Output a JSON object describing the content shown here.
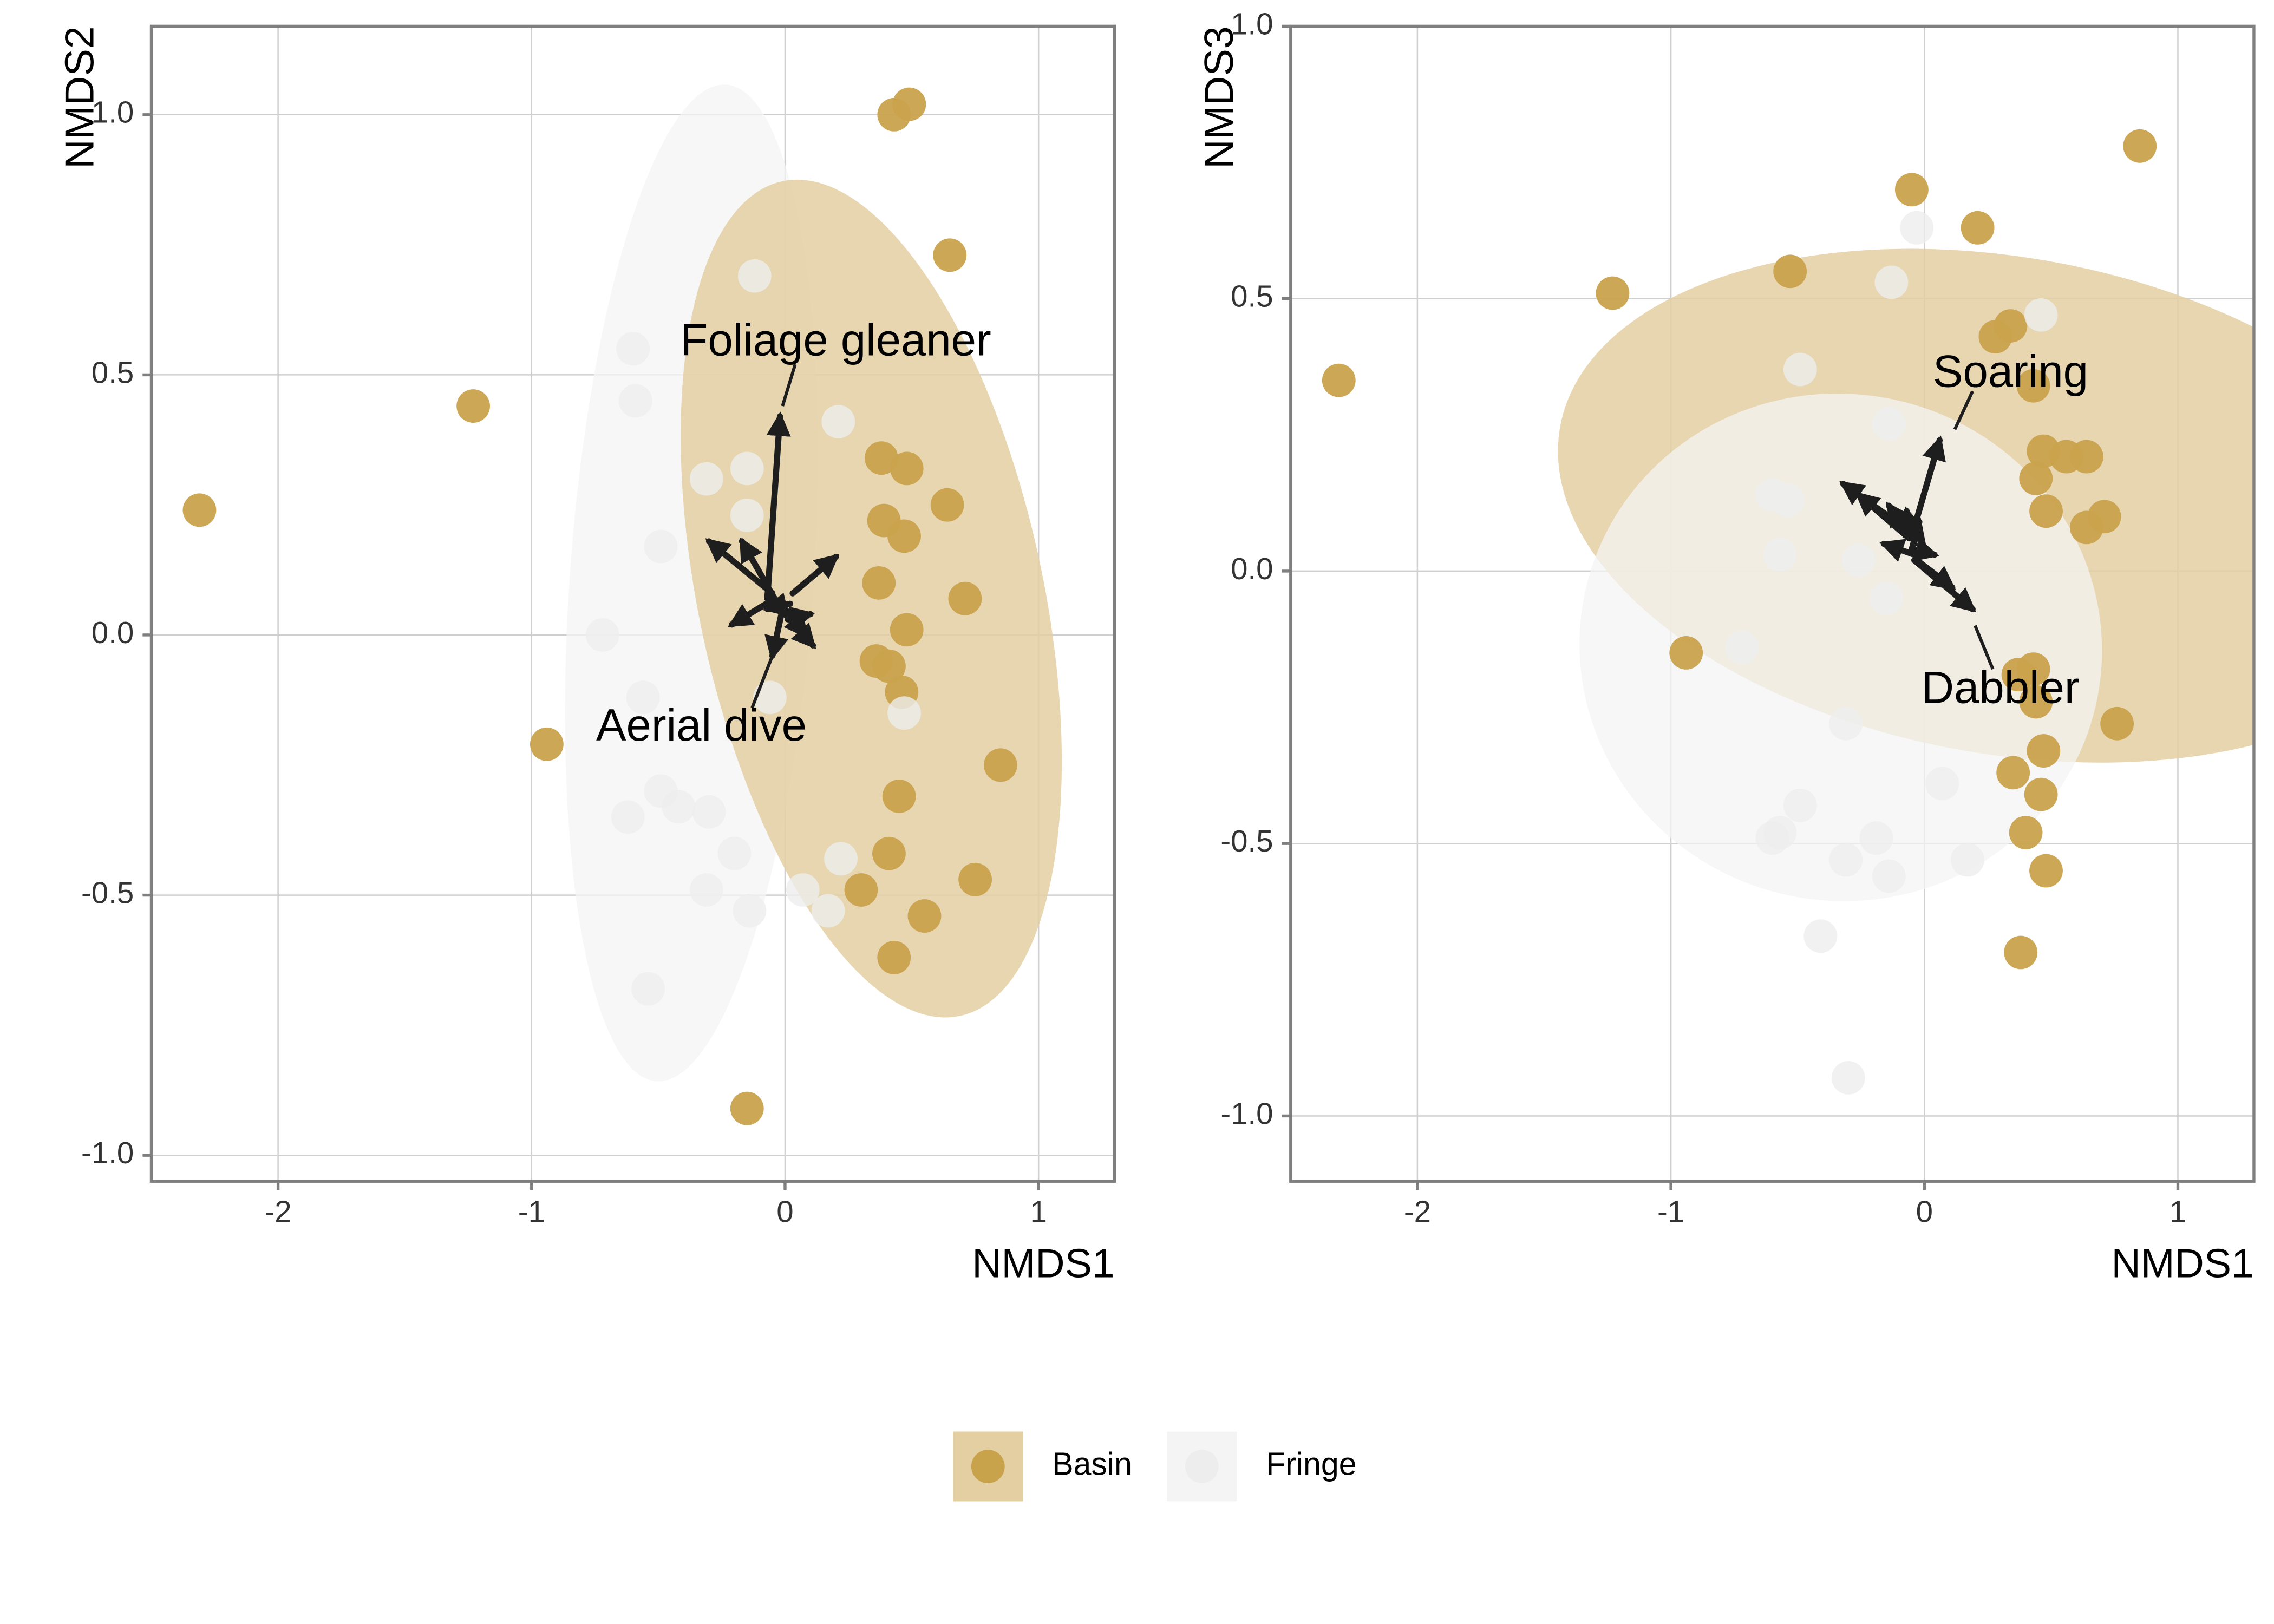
{
  "colors": {
    "basin": "#c9a24c",
    "basin_ellipse": "#e3cfa2",
    "fringe": "#ededed",
    "fringe_ellipse": "#f4f4f4",
    "arrow": "#1e1e1e",
    "grid": "#cfcfcf",
    "panel_border": "#7f7f7f",
    "tick_text": "#333333"
  },
  "legend": {
    "items": [
      {
        "label": "Basin",
        "group": "basin"
      },
      {
        "label": "Fringe",
        "group": "fringe"
      }
    ],
    "placement": "bottom"
  },
  "chart_data": [
    {
      "type": "scatter",
      "xlabel": "NMDS1",
      "ylabel": "NMDS2",
      "xlim": [
        -2.5,
        1.3
      ],
      "ylim": [
        -1.05,
        1.17
      ],
      "xticks": [
        -2,
        -1,
        0,
        1
      ],
      "xtick_labels": [
        "-2",
        "-1",
        "0",
        "1"
      ],
      "yticks": [
        -1.0,
        -0.5,
        0.0,
        0.5,
        1.0
      ],
      "ytick_labels": [
        "-1.0",
        "-0.5",
        "0.0",
        "0.5",
        "1.0"
      ],
      "grid": true,
      "series": [
        {
          "name": "Basin",
          "group": "basin",
          "points": [
            [
              0.43,
              1.0
            ],
            [
              0.49,
              1.02
            ],
            [
              0.65,
              0.73
            ],
            [
              -1.23,
              0.44
            ],
            [
              -2.31,
              0.24
            ],
            [
              0.38,
              0.34
            ],
            [
              0.48,
              0.32
            ],
            [
              0.64,
              0.25
            ],
            [
              0.39,
              0.22
            ],
            [
              0.47,
              0.19
            ],
            [
              0.37,
              0.1
            ],
            [
              0.71,
              0.07
            ],
            [
              0.48,
              0.01
            ],
            [
              0.36,
              -0.05
            ],
            [
              0.41,
              -0.06
            ],
            [
              0.46,
              -0.11
            ],
            [
              -0.94,
              -0.21
            ],
            [
              0.85,
              -0.25
            ],
            [
              0.45,
              -0.31
            ],
            [
              0.41,
              -0.42
            ],
            [
              0.3,
              -0.49
            ],
            [
              0.75,
              -0.47
            ],
            [
              0.55,
              -0.54
            ],
            [
              0.43,
              -0.62
            ],
            [
              -0.15,
              -0.91
            ]
          ]
        },
        {
          "name": "Fringe",
          "group": "fringe",
          "points": [
            [
              -0.12,
              0.69
            ],
            [
              -0.6,
              0.55
            ],
            [
              -0.59,
              0.45
            ],
            [
              0.21,
              0.41
            ],
            [
              -0.15,
              0.32
            ],
            [
              -0.31,
              0.3
            ],
            [
              -0.15,
              0.23
            ],
            [
              -0.49,
              0.17
            ],
            [
              -0.72,
              0.0
            ],
            [
              -0.06,
              -0.12
            ],
            [
              -0.56,
              -0.12
            ],
            [
              0.47,
              -0.15
            ],
            [
              -0.49,
              -0.3
            ],
            [
              -0.42,
              -0.33
            ],
            [
              -0.3,
              -0.34
            ],
            [
              -0.62,
              -0.35
            ],
            [
              -0.2,
              -0.42
            ],
            [
              0.22,
              -0.43
            ],
            [
              -0.31,
              -0.49
            ],
            [
              0.07,
              -0.49
            ],
            [
              -0.14,
              -0.53
            ],
            [
              0.17,
              -0.53
            ],
            [
              -0.54,
              -0.68
            ]
          ]
        }
      ],
      "ellipses": [
        {
          "group": "fringe",
          "cx": -0.37,
          "cy": 0.1,
          "rx": 0.48,
          "ry": 0.96,
          "angle": -4
        },
        {
          "group": "basin",
          "cx": 0.34,
          "cy": 0.07,
          "rx": 0.68,
          "ry": 0.82,
          "angle": 12
        }
      ],
      "arrows": [
        [
          -0.07,
          0.07,
          -0.02,
          0.42
        ],
        [
          -0.05,
          0.08,
          -0.3,
          0.18
        ],
        [
          -0.04,
          0.07,
          -0.21,
          0.02
        ],
        [
          -0.03,
          0.06,
          -0.17,
          0.18
        ],
        [
          0.03,
          0.08,
          0.2,
          0.15
        ],
        [
          0.02,
          0.06,
          -0.07,
          0.05
        ],
        [
          0.01,
          0.03,
          0.1,
          0.04
        ],
        [
          0.0,
          0.04,
          0.11,
          -0.02
        ],
        [
          -0.01,
          0.05,
          -0.05,
          -0.04
        ],
        [
          0.0,
          0.05,
          0.08,
          0.0
        ]
      ],
      "annotations": [
        {
          "text": "Foliage gleaner",
          "x": 0.2,
          "y": 0.56,
          "line": [
            [
              -0.01,
              0.44
            ],
            [
              0.04,
              0.52
            ]
          ]
        },
        {
          "text": "Aerial dive",
          "x": -0.33,
          "y": -0.18,
          "line": [
            [
              -0.05,
              -0.04
            ],
            [
              -0.13,
              -0.14
            ]
          ]
        }
      ]
    },
    {
      "type": "scatter",
      "xlabel": "NMDS1",
      "ylabel": "NMDS3",
      "xlim": [
        -2.5,
        1.3
      ],
      "ylim": [
        -1.12,
        1.0
      ],
      "xticks": [
        -2,
        -1,
        0,
        1
      ],
      "xtick_labels": [
        "-2",
        "-1",
        "0",
        "1"
      ],
      "yticks": [
        -1.0,
        -0.5,
        0.0,
        0.5,
        1.0
      ],
      "ytick_labels": [
        "-1.0",
        "-0.5",
        "0.0",
        "0.5",
        "1.0"
      ],
      "grid": true,
      "series": [
        {
          "name": "Basin",
          "group": "basin",
          "points": [
            [
              0.85,
              0.78
            ],
            [
              -0.05,
              0.7
            ],
            [
              0.21,
              0.63
            ],
            [
              -0.53,
              0.55
            ],
            [
              -1.23,
              0.51
            ],
            [
              -2.31,
              0.35
            ],
            [
              0.28,
              0.43
            ],
            [
              0.34,
              0.45
            ],
            [
              0.43,
              0.34
            ],
            [
              0.47,
              0.22
            ],
            [
              0.56,
              0.21
            ],
            [
              0.64,
              0.21
            ],
            [
              0.44,
              0.17
            ],
            [
              0.48,
              0.11
            ],
            [
              0.71,
              0.1
            ],
            [
              0.64,
              0.08
            ],
            [
              0.37,
              -0.19
            ],
            [
              0.43,
              -0.18
            ],
            [
              0.44,
              -0.24
            ],
            [
              0.76,
              -0.28
            ],
            [
              0.47,
              -0.33
            ],
            [
              0.35,
              -0.37
            ],
            [
              0.46,
              -0.41
            ],
            [
              0.4,
              -0.48
            ],
            [
              0.48,
              -0.55
            ],
            [
              -0.94,
              -0.15
            ],
            [
              0.38,
              -0.7
            ]
          ]
        },
        {
          "name": "Fringe",
          "group": "fringe",
          "points": [
            [
              -0.03,
              0.63
            ],
            [
              -0.13,
              0.53
            ],
            [
              0.46,
              0.47
            ],
            [
              -0.49,
              0.37
            ],
            [
              -0.14,
              0.27
            ],
            [
              -0.6,
              0.14
            ],
            [
              -0.54,
              0.13
            ],
            [
              -0.57,
              0.03
            ],
            [
              -0.26,
              0.02
            ],
            [
              -0.15,
              -0.05
            ],
            [
              -0.72,
              -0.14
            ],
            [
              -0.31,
              -0.28
            ],
            [
              0.07,
              -0.39
            ],
            [
              -0.49,
              -0.43
            ],
            [
              -0.57,
              -0.48
            ],
            [
              -0.6,
              -0.49
            ],
            [
              -0.19,
              -0.49
            ],
            [
              0.17,
              -0.53
            ],
            [
              -0.31,
              -0.53
            ],
            [
              -0.14,
              -0.56
            ],
            [
              -0.41,
              -0.67
            ],
            [
              -0.3,
              -0.93
            ]
          ]
        }
      ],
      "ellipses": [
        {
          "group": "basin",
          "cx": 0.32,
          "cy": 0.12,
          "rx": 0.98,
          "ry": 0.83,
          "angle": 80
        },
        {
          "group": "fringe",
          "cx": -0.33,
          "cy": -0.14,
          "rx": 1.0,
          "ry": 0.48,
          "angle": 78
        }
      ],
      "arrows": [
        [
          -0.04,
          0.08,
          0.06,
          0.24
        ],
        [
          -0.05,
          0.07,
          -0.32,
          0.16
        ],
        [
          -0.06,
          0.06,
          -0.26,
          0.14
        ],
        [
          -0.05,
          0.06,
          -0.14,
          0.12
        ],
        [
          -0.04,
          0.05,
          -0.07,
          0.11
        ],
        [
          -0.05,
          0.04,
          -0.02,
          0.09
        ],
        [
          -0.04,
          0.03,
          -0.16,
          0.05
        ],
        [
          -0.04,
          0.02,
          0.19,
          -0.07
        ],
        [
          -0.03,
          0.02,
          0.11,
          -0.03
        ],
        [
          -0.04,
          0.04,
          0.04,
          0.03
        ]
      ],
      "annotations": [
        {
          "text": "Soaring",
          "x": 0.34,
          "y": 0.36,
          "line": [
            [
              0.12,
              0.26
            ],
            [
              0.19,
              0.33
            ]
          ]
        },
        {
          "text": "Dabbler",
          "x": 0.3,
          "y": -0.22,
          "line": [
            [
              0.2,
              -0.1
            ],
            [
              0.27,
              -0.18
            ]
          ]
        }
      ]
    }
  ]
}
